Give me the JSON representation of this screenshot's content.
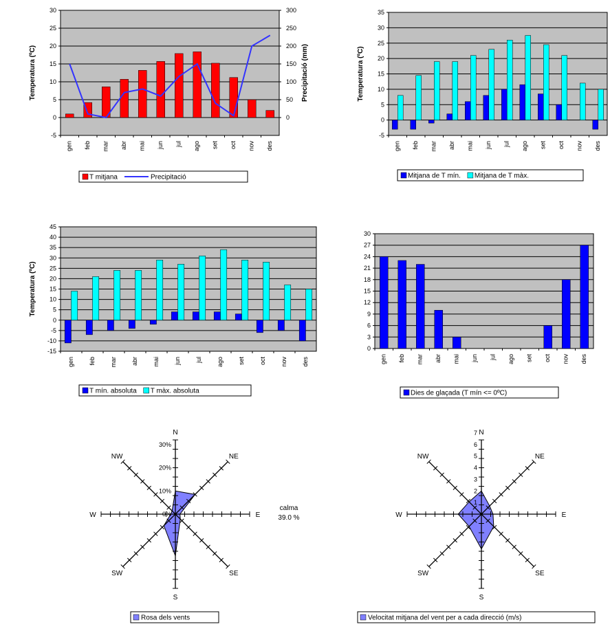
{
  "months": [
    "gen",
    "feb",
    "mar",
    "abr",
    "mai",
    "jun",
    "jul",
    "ago",
    "set",
    "oct",
    "nov",
    "des"
  ],
  "colors": {
    "red": "#ff0000",
    "blue": "#0000ff",
    "cyan": "#00ffff",
    "line": "#3333ff",
    "rose": "#8080ff",
    "plot_bg": "#c0c0c0"
  },
  "chart_data": [
    {
      "id": "chart1",
      "type": "bar+line",
      "ylabel": "Temperatura (ºC)",
      "y2label": "Precipitació (mm)",
      "ylim": [
        -5,
        30
      ],
      "yticks": [
        "-5",
        "0",
        "5",
        "10",
        "15",
        "20",
        "25",
        "30"
      ],
      "y2lim": [
        -50,
        300
      ],
      "y2ticks": [
        "0",
        "50",
        "100",
        "150",
        "200",
        "250",
        "300"
      ],
      "series": [
        {
          "name": "T mitjana",
          "kind": "bar",
          "color": "#ff0000",
          "values": [
            1,
            4.2,
            8.6,
            10.7,
            13.2,
            15.7,
            17.9,
            18.4,
            15.2,
            11.2,
            5,
            2
          ]
        },
        {
          "name": "Precipitació",
          "kind": "line",
          "axis": "y2",
          "color": "#3333ff",
          "values": [
            150,
            10,
            0,
            70,
            80,
            60,
            115,
            150,
            40,
            5,
            200,
            230
          ]
        }
      ]
    },
    {
      "id": "chart2",
      "type": "bar",
      "ylabel": "Temperatura (ºC)",
      "ylim": [
        -5,
        35
      ],
      "yticks": [
        "-5",
        "0",
        "5",
        "10",
        "15",
        "20",
        "25",
        "30",
        "35"
      ],
      "series": [
        {
          "name": "Mitjana de T mín.",
          "color": "#0000ff",
          "values": [
            -3,
            -3,
            -1,
            2,
            6,
            8,
            10,
            11.5,
            8.5,
            5,
            0,
            -3
          ]
        },
        {
          "name": "Mitjana de T màx.",
          "color": "#00ffff",
          "values": [
            8,
            14.5,
            19,
            19,
            21,
            23,
            26,
            27.5,
            24.5,
            21,
            12,
            10
          ]
        }
      ]
    },
    {
      "id": "chart3",
      "type": "bar",
      "ylabel": "Temperatura (ºC)",
      "ylim": [
        -15,
        45
      ],
      "yticks": [
        "-15",
        "-10",
        "-5",
        "0",
        "5",
        "10",
        "15",
        "20",
        "25",
        "30",
        "35",
        "40",
        "45"
      ],
      "series": [
        {
          "name": "T mín. absoluta",
          "color": "#0000ff",
          "values": [
            -11,
            -7,
            -5,
            -4,
            -2,
            4,
            4,
            4,
            3,
            -6,
            -5,
            -10
          ]
        },
        {
          "name": "T màx. absoluta",
          "color": "#00ffff",
          "values": [
            14,
            21,
            24,
            24,
            29,
            27,
            31,
            34,
            29,
            28,
            17,
            15
          ]
        }
      ]
    },
    {
      "id": "chart4",
      "type": "bar",
      "ylim": [
        0,
        30
      ],
      "yticks": [
        "0",
        "3",
        "6",
        "9",
        "12",
        "15",
        "18",
        "21",
        "24",
        "27",
        "30"
      ],
      "series": [
        {
          "name": "Dies de glaçada (T mín <= 0ºC)",
          "color": "#0000ff",
          "values": [
            24,
            23,
            22,
            10,
            3,
            0,
            0,
            0,
            0,
            6,
            18,
            27
          ]
        }
      ]
    },
    {
      "id": "rose1",
      "type": "radar",
      "directions": [
        "N",
        "NE",
        "E",
        "SE",
        "S",
        "SW",
        "W",
        "NW"
      ],
      "rmax": 40,
      "rticks": [
        "0%",
        "10%",
        "20%",
        "30%"
      ],
      "series": [
        {
          "name": "Rosa dels vents",
          "color": "#8080ff",
          "values": [
            10,
            12,
            2,
            3,
            18,
            7,
            2,
            2
          ]
        }
      ],
      "annotation": [
        "calma",
        "39.0 %"
      ]
    },
    {
      "id": "rose2",
      "type": "radar",
      "directions": [
        "N",
        "NE",
        "E",
        "SE",
        "S",
        "SW",
        "W",
        "NW"
      ],
      "rmax": 8,
      "rticks": [
        "1",
        "2",
        "3",
        "4",
        "5",
        "6",
        "7"
      ],
      "series": [
        {
          "name": "Velocitat mitjana del vent per a cada direcció (m/s)",
          "color": "#8080ff",
          "values": [
            2,
            1,
            1,
            1.5,
            3,
            1.5,
            2,
            1.5
          ]
        }
      ]
    }
  ]
}
